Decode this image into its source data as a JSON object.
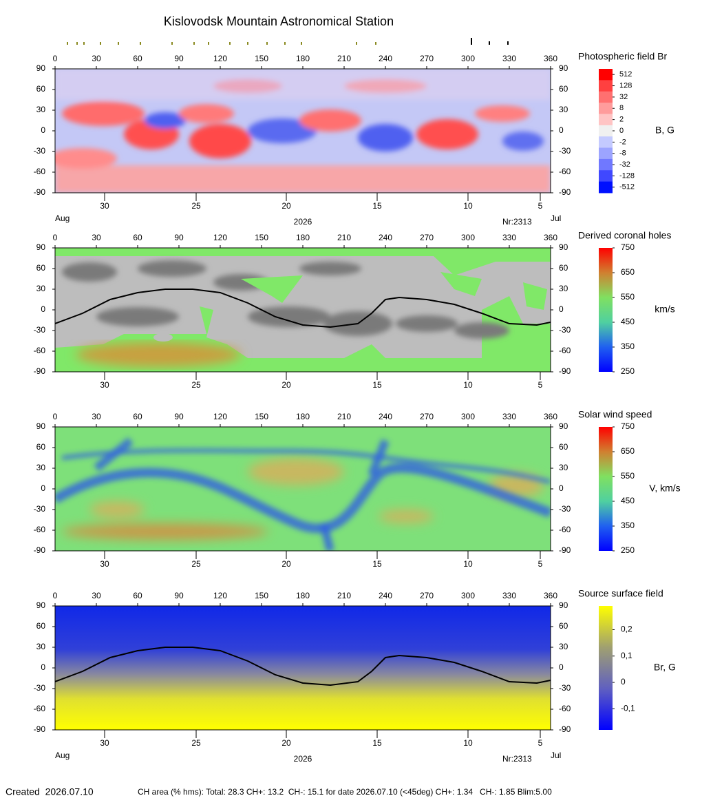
{
  "title": "Kislovodsk Mountain Astronomical Station",
  "chart_data": [
    {
      "type": "heatmap",
      "title": "Photospheric field Br",
      "colorbar_label": "B, G",
      "xlim": [
        0,
        360
      ],
      "xticks": [
        0,
        30,
        60,
        90,
        120,
        150,
        180,
        210,
        240,
        270,
        300,
        330,
        360
      ],
      "ylim": [
        -90,
        90
      ],
      "yticks": [
        -90,
        -60,
        -30,
        0,
        30,
        60,
        90
      ],
      "date_ticks": [
        {
          "value": 36,
          "label": "30"
        },
        {
          "value": 102.5,
          "label": "25"
        },
        {
          "value": 168,
          "label": "20"
        },
        {
          "value": 234,
          "label": "15"
        },
        {
          "value": 300,
          "label": "10"
        },
        {
          "value": 352.5,
          "label": "5"
        }
      ],
      "colorbar_type": "discrete",
      "colorbar_ticks": [
        512,
        128,
        32,
        8,
        2,
        0,
        -2,
        -8,
        -32,
        -128,
        -512
      ],
      "colormap": [
        "#ff0000",
        "#ff4040",
        "#ff7070",
        "#ff9c9c",
        "#ffc4c4",
        "#f0f0f0",
        "#c4caff",
        "#9ca4ff",
        "#7078ff",
        "#4048ff",
        "#0010ff"
      ],
      "bottom_labels": [
        "Aug",
        "2026",
        "Nr:2313",
        "Jul"
      ]
    },
    {
      "type": "heatmap",
      "title": "Derived coronal holes",
      "colorbar_label": "km/s",
      "xlim": [
        0,
        360
      ],
      "xticks": [
        0,
        30,
        60,
        90,
        120,
        150,
        180,
        210,
        240,
        270,
        300,
        330,
        360
      ],
      "ylim": [
        -90,
        90
      ],
      "yticks": [
        -90,
        -60,
        -30,
        0,
        30,
        60,
        90
      ],
      "date_ticks": [
        {
          "value": 36,
          "label": "30"
        },
        {
          "value": 102.5,
          "label": "25"
        },
        {
          "value": 168,
          "label": "20"
        },
        {
          "value": 234,
          "label": "15"
        },
        {
          "value": 300,
          "label": "10"
        },
        {
          "value": 352.5,
          "label": "5"
        }
      ],
      "colorbar_type": "linear",
      "clim": [
        250,
        750
      ],
      "colorbar_ticks": [
        750,
        650,
        550,
        450,
        350,
        250
      ],
      "colormap": [
        "#ff0000",
        "#d08030",
        "#80e060",
        "#50d0a0",
        "#2060f0",
        "#0000ff"
      ],
      "neutral_line": {
        "x": [
          0,
          20,
          40,
          60,
          80,
          100,
          120,
          140,
          160,
          180,
          200,
          220,
          230,
          240,
          250,
          270,
          290,
          310,
          330,
          350,
          360
        ],
        "y": [
          -20,
          -5,
          15,
          25,
          30,
          30,
          25,
          10,
          -10,
          -22,
          -25,
          -20,
          -5,
          15,
          18,
          15,
          8,
          -5,
          -20,
          -22,
          -18
        ]
      }
    },
    {
      "type": "heatmap",
      "title": "Solar wind speed",
      "colorbar_label": "V, km/s",
      "xlim": [
        0,
        360
      ],
      "xticks": [
        0,
        30,
        60,
        90,
        120,
        150,
        180,
        210,
        240,
        270,
        300,
        330,
        360
      ],
      "ylim": [
        -90,
        90
      ],
      "yticks": [
        -90,
        -60,
        -30,
        0,
        30,
        60,
        90
      ],
      "date_ticks": [
        {
          "value": 36,
          "label": "30"
        },
        {
          "value": 102.5,
          "label": "25"
        },
        {
          "value": 168,
          "label": "20"
        },
        {
          "value": 234,
          "label": "15"
        },
        {
          "value": 300,
          "label": "10"
        },
        {
          "value": 352.5,
          "label": "5"
        }
      ],
      "colorbar_type": "linear",
      "clim": [
        250,
        750
      ],
      "colorbar_ticks": [
        750,
        650,
        550,
        450,
        350,
        250
      ],
      "colormap": [
        "#ff0000",
        "#d08030",
        "#80e060",
        "#50d0a0",
        "#2060f0",
        "#0000ff"
      ]
    },
    {
      "type": "heatmap",
      "title": "Source surface field",
      "colorbar_label": "Br, G",
      "xlim": [
        0,
        360
      ],
      "xticks": [
        0,
        30,
        60,
        90,
        120,
        150,
        180,
        210,
        240,
        270,
        300,
        330,
        360
      ],
      "ylim": [
        -90,
        90
      ],
      "yticks": [
        -90,
        -60,
        -30,
        0,
        30,
        60,
        90
      ],
      "date_ticks": [
        {
          "value": 36,
          "label": "30"
        },
        {
          "value": 102.5,
          "label": "25"
        },
        {
          "value": 168,
          "label": "20"
        },
        {
          "value": 234,
          "label": "15"
        },
        {
          "value": 300,
          "label": "10"
        },
        {
          "value": 352.5,
          "label": "5"
        }
      ],
      "colorbar_type": "linear",
      "clim": [
        -0.18,
        0.29
      ],
      "colorbar_ticks": [
        {
          "value": 0.2,
          "label": "0,2"
        },
        {
          "value": 0.1,
          "label": "0,1"
        },
        0,
        {
          "value": -0.1,
          "label": "-0,1"
        }
      ],
      "colormap": [
        "#ffff00",
        "#a0a070",
        "#6060c0",
        "#0000ff"
      ],
      "neutral_line": {
        "x": [
          0,
          20,
          40,
          60,
          80,
          100,
          120,
          140,
          160,
          180,
          200,
          220,
          230,
          240,
          250,
          270,
          290,
          310,
          330,
          350,
          360
        ],
        "y": [
          -20,
          -5,
          15,
          25,
          30,
          30,
          25,
          10,
          -10,
          -22,
          -25,
          -20,
          -5,
          15,
          18,
          15,
          8,
          -5,
          -20,
          -22,
          -18
        ]
      },
      "bottom_labels": [
        "Aug",
        "2026",
        "Nr:2313",
        "Jul"
      ]
    }
  ],
  "footer": {
    "created": "Created  2026.07.10",
    "stats": "CH area (% hms): Total: 28.3 CH+: 13.2  CH-: 15.1 for date 2026.07.10 (<45deg) CH+: 1.34   CH-: 1.85 Blim:5.00"
  }
}
